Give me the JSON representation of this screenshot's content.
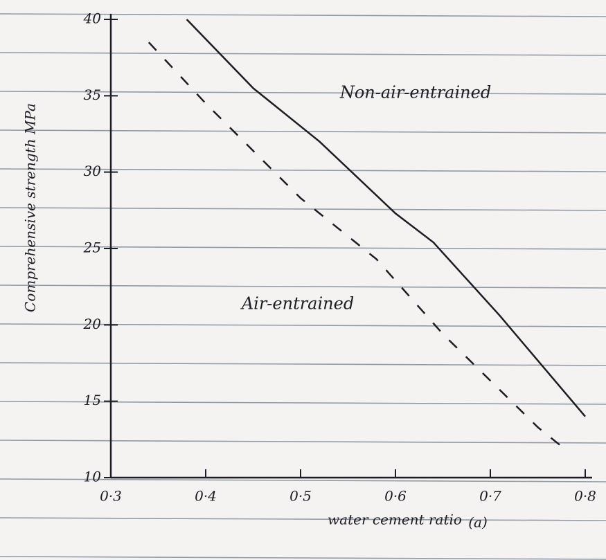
{
  "chart_data": {
    "type": "line",
    "x_label": "water cement ratio",
    "y_label": "Comprehensive strength MPa",
    "caption": "(a)",
    "annotations": [
      "Non-air-entrained",
      "Air-entrained"
    ],
    "xlim": [
      0.3,
      0.8
    ],
    "ylim": [
      10,
      40
    ],
    "xticks": [
      {
        "value": 0.3,
        "label": "0·3"
      },
      {
        "value": 0.4,
        "label": "0·4"
      },
      {
        "value": 0.5,
        "label": "0·5"
      },
      {
        "value": 0.6,
        "label": "0·6"
      },
      {
        "value": 0.7,
        "label": "0·7"
      },
      {
        "value": 0.8,
        "label": "0·8"
      }
    ],
    "yticks": [
      10,
      15,
      20,
      25,
      30,
      35,
      40
    ],
    "series": [
      {
        "name": "Non-air-entrained",
        "color": "#1c1c24",
        "style": "solid",
        "x": [
          0.38,
          0.45,
          0.52,
          0.6,
          0.64,
          0.71,
          0.8
        ],
        "values": [
          40,
          35.5,
          32,
          27.3,
          25.4,
          20.6,
          14
        ]
      },
      {
        "name": "Air-entrained",
        "color": "#1c1c24",
        "style": "dashed",
        "x": [
          0.34,
          0.4,
          0.5,
          0.58,
          0.65,
          0.75,
          0.78
        ],
        "values": [
          38.5,
          34.5,
          28.3,
          24.3,
          19.4,
          13.3,
          11.8
        ]
      }
    ]
  }
}
